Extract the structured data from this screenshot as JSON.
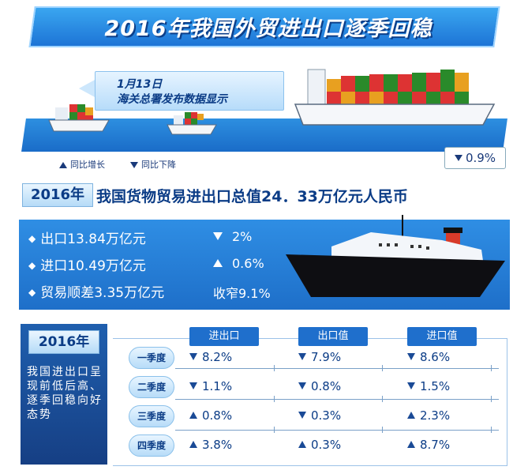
{
  "header": {
    "title": "2016年我国外贸进出口逐季回稳",
    "date": "1月13日",
    "source": "海关总署发布数据显示",
    "legend_up": "同比增长",
    "legend_down": "同比下降",
    "total_change": "0.9%"
  },
  "summary": {
    "year": "2016年",
    "headline": "我国货物贸易进出口总值24．33万亿元人民币",
    "rows": [
      {
        "label": "出口13.84万亿元",
        "direction": "down",
        "change": "2%"
      },
      {
        "label": "进口10.49万亿元",
        "direction": "up",
        "change": "0.6%"
      },
      {
        "label": "贸易顺差3.35万亿元",
        "direction": "none",
        "change": "收窄9.1%"
      }
    ]
  },
  "quarterly": {
    "year": "2016年",
    "description": "我国进出口呈现前低后高、逐季回稳向好态势",
    "columns": [
      "进出口",
      "出口值",
      "进口值"
    ],
    "rows": [
      {
        "quarter": "一季度",
        "values": [
          {
            "dir": "down",
            "value": "8.2%"
          },
          {
            "dir": "down",
            "value": "7.9%"
          },
          {
            "dir": "down",
            "value": "8.6%"
          }
        ]
      },
      {
        "quarter": "二季度",
        "values": [
          {
            "dir": "down",
            "value": "1.1%"
          },
          {
            "dir": "down",
            "value": "0.8%"
          },
          {
            "dir": "down",
            "value": "1.5%"
          }
        ]
      },
      {
        "quarter": "三季度",
        "values": [
          {
            "dir": "up",
            "value": "0.8%"
          },
          {
            "dir": "down",
            "value": "0.3%"
          },
          {
            "dir": "up",
            "value": "2.3%"
          }
        ]
      },
      {
        "quarter": "四季度",
        "values": [
          {
            "dir": "up",
            "value": "3.8%"
          },
          {
            "dir": "up",
            "value": "0.3%"
          },
          {
            "dir": "up",
            "value": "8.7%"
          }
        ]
      }
    ]
  },
  "colors": {
    "primary": "#1f6fcc",
    "dark": "#0b3c86",
    "panel": "#2f8ee4"
  }
}
